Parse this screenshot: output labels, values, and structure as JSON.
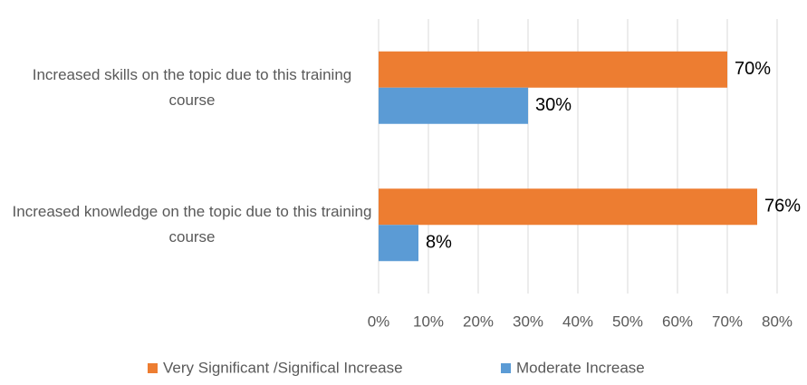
{
  "chart_data": {
    "type": "bar",
    "orientation": "horizontal",
    "categories": [
      "Increased skills on the topic due to this training course",
      "Increased knowledge on the topic due to this training course"
    ],
    "series": [
      {
        "name": "Very Significant /Significal Increase",
        "color": "#ed7d31",
        "values": [
          70,
          76
        ],
        "value_labels": [
          "70%",
          "76%"
        ]
      },
      {
        "name": "Moderate Increase",
        "color": "#5b9bd5",
        "values": [
          30,
          8
        ],
        "value_labels": [
          "30%",
          "8%"
        ]
      }
    ],
    "xlim": [
      0,
      80
    ],
    "xticks": [
      {
        "value": 0,
        "label": "0%"
      },
      {
        "value": 10,
        "label": "10%"
      },
      {
        "value": 20,
        "label": "20%"
      },
      {
        "value": 30,
        "label": "30%"
      },
      {
        "value": 40,
        "label": "40%"
      },
      {
        "value": 50,
        "label": "50%"
      },
      {
        "value": 60,
        "label": "60%"
      },
      {
        "value": 70,
        "label": "70%"
      },
      {
        "value": 80,
        "label": "80%"
      }
    ],
    "grid": true,
    "legend": "bottom"
  }
}
